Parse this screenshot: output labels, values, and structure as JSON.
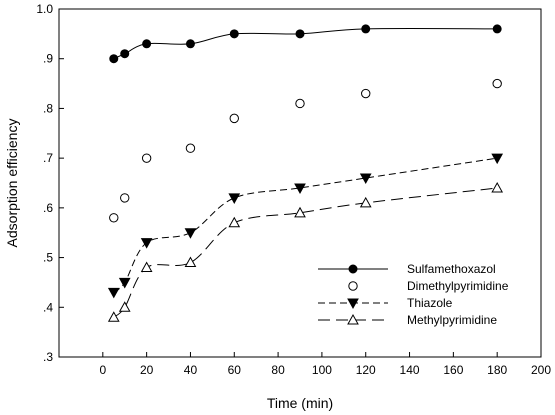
{
  "chart_data": {
    "type": "line",
    "xlabel": "Time (min)",
    "ylabel": "Adsorption efficiency",
    "xlim": [
      -20,
      200
    ],
    "ylim": [
      0.3,
      1.0
    ],
    "x_ticks": [
      0,
      20,
      40,
      60,
      80,
      100,
      120,
      140,
      160,
      180,
      200
    ],
    "x_tick_labels": [
      "0",
      "20",
      "40",
      "60",
      "80",
      "100",
      "120",
      "140",
      "160",
      "180",
      "200"
    ],
    "y_ticks": [
      0.3,
      0.4,
      0.5,
      0.6,
      0.7,
      0.8,
      0.9,
      1.0
    ],
    "y_tick_labels": [
      ".3",
      ".4",
      ".5",
      ".6",
      ".7",
      ".8",
      ".9",
      "1.0"
    ],
    "grid": false,
    "legend_position": "bottom-right",
    "series": [
      {
        "name": "Sulfamethoxazol",
        "marker": "filled-circle",
        "line": "solid",
        "x": [
          5,
          10,
          20,
          40,
          60,
          90,
          120,
          180
        ],
        "y": [
          0.9,
          0.91,
          0.93,
          0.93,
          0.95,
          0.95,
          0.96,
          0.96
        ]
      },
      {
        "name": "Dimethylpyrimidine",
        "marker": "open-circle",
        "line": "none",
        "x": [
          5,
          10,
          20,
          40,
          60,
          90,
          120,
          180
        ],
        "y": [
          0.58,
          0.62,
          0.7,
          0.72,
          0.78,
          0.81,
          0.83,
          0.85
        ]
      },
      {
        "name": "Thiazole",
        "marker": "filled-triangle-down",
        "line": "dashed",
        "x": [
          5,
          10,
          20,
          40,
          60,
          90,
          120,
          180
        ],
        "y": [
          0.43,
          0.45,
          0.53,
          0.55,
          0.62,
          0.64,
          0.66,
          0.7
        ]
      },
      {
        "name": "Methylpyrimidine",
        "marker": "open-triangle-up",
        "line": "long-dashed",
        "x": [
          5,
          10,
          20,
          40,
          60,
          90,
          120,
          180
        ],
        "y": [
          0.38,
          0.4,
          0.48,
          0.49,
          0.57,
          0.59,
          0.61,
          0.64
        ]
      }
    ]
  }
}
